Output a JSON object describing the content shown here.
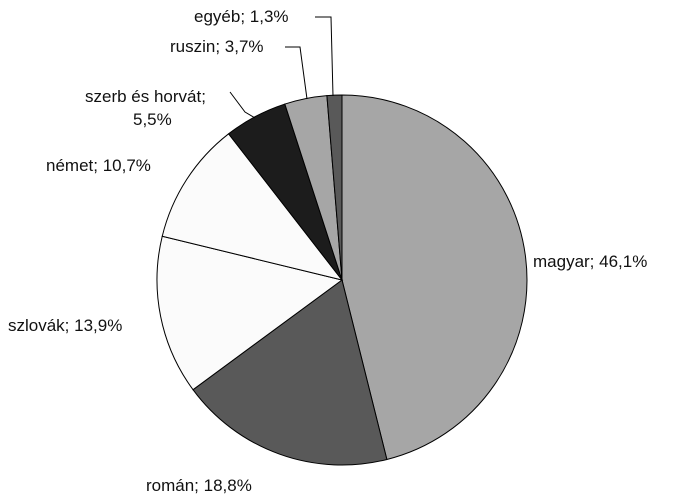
{
  "chart_data": {
    "type": "pie",
    "title": "",
    "legend": "none",
    "slices": [
      {
        "label": "magyar; 46,1%",
        "name": "magyar",
        "value": 46.1,
        "color": "#a6a6a6"
      },
      {
        "label": "román; 18,8%",
        "name": "román",
        "value": 18.8,
        "color": "#595959"
      },
      {
        "label": "szlovák; 13,9%",
        "name": "szlovák",
        "value": 13.9,
        "color": "#fbfbfb"
      },
      {
        "label": "német; 10,7%",
        "name": "német",
        "value": 10.7,
        "color": "#fbfbfb"
      },
      {
        "label_lines": [
          "szerb és horvát;",
          "5,5%"
        ],
        "name": "szerb és horvát",
        "value": 5.5,
        "color": "#1c1c1c"
      },
      {
        "label": "ruszin; 3,7%",
        "name": "ruszin",
        "value": 3.7,
        "color": "#a6a6a6"
      },
      {
        "label": "egyéb; 1,3%",
        "name": "egyéb",
        "value": 1.3,
        "color": "#595959"
      }
    ]
  }
}
